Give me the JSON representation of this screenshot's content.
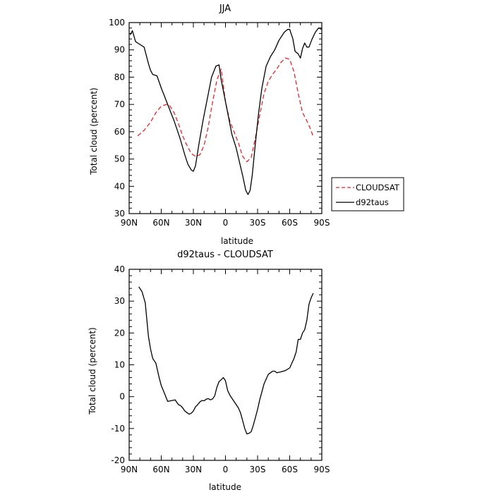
{
  "chart_data": [
    {
      "type": "line",
      "title": "JJA",
      "xlabel": "latitude",
      "ylabel": "Total cloud (percent)",
      "xlim": [
        90,
        -90
      ],
      "ylim": [
        30,
        100
      ],
      "xticks": [
        {
          "value": 90,
          "label": "90N"
        },
        {
          "value": 60,
          "label": "60N"
        },
        {
          "value": 30,
          "label": "30N"
        },
        {
          "value": 0,
          "label": "0"
        },
        {
          "value": -30,
          "label": "30S"
        },
        {
          "value": -60,
          "label": "60S"
        },
        {
          "value": -90,
          "label": "90S"
        }
      ],
      "yticks": [
        30,
        40,
        50,
        60,
        70,
        80,
        90,
        100
      ],
      "grid": false,
      "legend": {
        "placement": "right",
        "entries": [
          "CLOUDSAT",
          "d92taus"
        ]
      },
      "series": [
        {
          "name": "CLOUDSAT",
          "color": "#e8262a",
          "dash": "dashed",
          "x": [
            82,
            76,
            70,
            65,
            60,
            55,
            52,
            48,
            44,
            40,
            36,
            32,
            28,
            24,
            20,
            16,
            12,
            8,
            4,
            0,
            -4,
            -8,
            -12,
            -16,
            -20,
            -24,
            -28,
            -32,
            -36,
            -40,
            -44,
            -48,
            -52,
            -56,
            -60,
            -64,
            -68,
            -72,
            -76,
            -80,
            -82
          ],
          "y": [
            58.5,
            60.5,
            63.5,
            67,
            69.4,
            70,
            69.5,
            67,
            63,
            58.5,
            55,
            52,
            51,
            51.5,
            55,
            62,
            71,
            79,
            83,
            71,
            64,
            60,
            56,
            51,
            49,
            50.5,
            58,
            66,
            74,
            78.5,
            81,
            83,
            85.5,
            87,
            86.5,
            82,
            74,
            67,
            64,
            60.5,
            58
          ]
        },
        {
          "name": "d92taus",
          "color": "#000000",
          "dash": "solid",
          "x": [
            89,
            87,
            84,
            80,
            76,
            72,
            70,
            68,
            64,
            60,
            57,
            52,
            48,
            45,
            42,
            38,
            35,
            32,
            30,
            28,
            25,
            21,
            17,
            13,
            9,
            6,
            4,
            2,
            0,
            -3,
            -6,
            -10,
            -13,
            -16,
            -19,
            -21,
            -23,
            -25,
            -28,
            -31,
            -34,
            -38,
            -42,
            -46,
            -50,
            -55,
            -58,
            -60,
            -63,
            -65,
            -68,
            -70,
            -72,
            -74,
            -76,
            -78,
            -81,
            -84,
            -87,
            -90
          ],
          "y": [
            95.5,
            97,
            93,
            92,
            91,
            85,
            82.5,
            81,
            80.5,
            76,
            73,
            68,
            64,
            60.5,
            57,
            51.5,
            48,
            46,
            45.5,
            47.5,
            55,
            64,
            72,
            80,
            84,
            84.5,
            79,
            75,
            71,
            65,
            59,
            54,
            49,
            44,
            38.5,
            37,
            38.5,
            44,
            56,
            67,
            76,
            84,
            87.5,
            90,
            93.5,
            96.5,
            97.5,
            97.5,
            94,
            89.5,
            88.5,
            87,
            90.5,
            92.5,
            91,
            91,
            94,
            96.5,
            98,
            97.5
          ]
        }
      ]
    },
    {
      "type": "line",
      "title": "d92taus - CLOUDSAT",
      "xlabel": "latitude",
      "ylabel": "Total cloud (percent)",
      "xlim": [
        90,
        -90
      ],
      "ylim": [
        -20,
        40
      ],
      "xticks": [
        {
          "value": 90,
          "label": "90N"
        },
        {
          "value": 60,
          "label": "60N"
        },
        {
          "value": 30,
          "label": "30N"
        },
        {
          "value": 0,
          "label": "0"
        },
        {
          "value": -30,
          "label": "30S"
        },
        {
          "value": -60,
          "label": "60S"
        },
        {
          "value": -90,
          "label": "90S"
        }
      ],
      "yticks": [
        -20,
        -10,
        0,
        10,
        20,
        30,
        40
      ],
      "grid": false,
      "series": [
        {
          "color": "#000000",
          "dash": "solid",
          "x": [
            81,
            78,
            75,
            72,
            70,
            68,
            65,
            62,
            60,
            57,
            54,
            50,
            47,
            44,
            42,
            40,
            38,
            36,
            34,
            32,
            30,
            28,
            26,
            24,
            22,
            20,
            18,
            16,
            14,
            12,
            10,
            8,
            6,
            4,
            2,
            0,
            -2,
            -4,
            -6,
            -8,
            -10,
            -12,
            -14,
            -16,
            -18,
            -20,
            -22,
            -24,
            -26,
            -28,
            -30,
            -32,
            -34,
            -36,
            -38,
            -40,
            -42,
            -44,
            -46,
            -48,
            -52,
            -56,
            -60,
            -62,
            -64,
            -66,
            -68,
            -70,
            -72,
            -74,
            -76,
            -78,
            -80,
            -82
          ],
          "y": [
            34.5,
            33,
            29.5,
            19,
            15,
            12,
            10.5,
            6,
            3.5,
            1,
            -1.5,
            -1.2,
            -1,
            -2.5,
            -2.8,
            -3.5,
            -4.5,
            -5,
            -5.5,
            -5.2,
            -4.5,
            -3.2,
            -2.5,
            -1.7,
            -1.2,
            -1.3,
            -0.8,
            -0.6,
            -1,
            -0.7,
            0.3,
            3,
            4.7,
            5.3,
            6,
            5,
            2,
            0.5,
            -0.5,
            -1.5,
            -2.5,
            -3.5,
            -5,
            -7.5,
            -10,
            -11.7,
            -11.5,
            -11,
            -9,
            -6.5,
            -4,
            -1,
            1.5,
            4,
            5.5,
            7,
            7.5,
            8,
            8,
            7.5,
            7.8,
            8.2,
            9,
            10.5,
            12,
            14,
            18,
            18,
            20,
            21,
            24,
            29,
            31,
            32.5
          ]
        }
      ]
    }
  ]
}
